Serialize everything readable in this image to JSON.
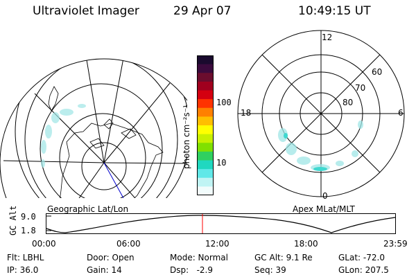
{
  "header": {
    "instrument": "Ultraviolet Imager",
    "date": "29 Apr 07",
    "time": "10:49:15 UT"
  },
  "colorbar": {
    "unit_label": "photon cm⁻²s⁻¹",
    "tick_100": "100",
    "tick_10": "10",
    "scale": "log",
    "colors_top_to_bottom": [
      "#1a0a2e",
      "#3b0a3d",
      "#6b0d2e",
      "#a0001e",
      "#d40010",
      "#ff3300",
      "#ff8000",
      "#ffbf00",
      "#ffff00",
      "#c8f000",
      "#80e000",
      "#30d060",
      "#20d8c0",
      "#60e8e8",
      "#c0f4f4",
      "#f2fcfc"
    ]
  },
  "left_panel": {
    "label": "Geographic Lat/Lon"
  },
  "right_panel": {
    "label": "Apex MLat/MLT",
    "mlt_labels": {
      "top": "12",
      "left": "18",
      "right": "6",
      "bottom": "0"
    },
    "lat_labels": [
      "60",
      "70",
      "80"
    ]
  },
  "timeline": {
    "ylabel": "GC Alt",
    "ymax_label": "9.0",
    "ymin_label": "1.8",
    "ticks": [
      "00:00",
      "06:00",
      "12:00",
      "18:00",
      "23:59"
    ],
    "current_time_marker": "10:49",
    "marker_color": "#ff0000"
  },
  "status": {
    "row1": {
      "filter": "Flt: LBHL",
      "door": "Door: Open",
      "mode": "Mode: Normal",
      "gc_alt": "GC Alt: 9.1 Re",
      "glat": "GLat: -72.0"
    },
    "row2": {
      "ip": "IP: 36.0",
      "gain": "Gain: 14",
      "dsp": "Dsp:   -2.9",
      "seq": "Seq: 39",
      "glon": "GLon: 207.5"
    }
  }
}
